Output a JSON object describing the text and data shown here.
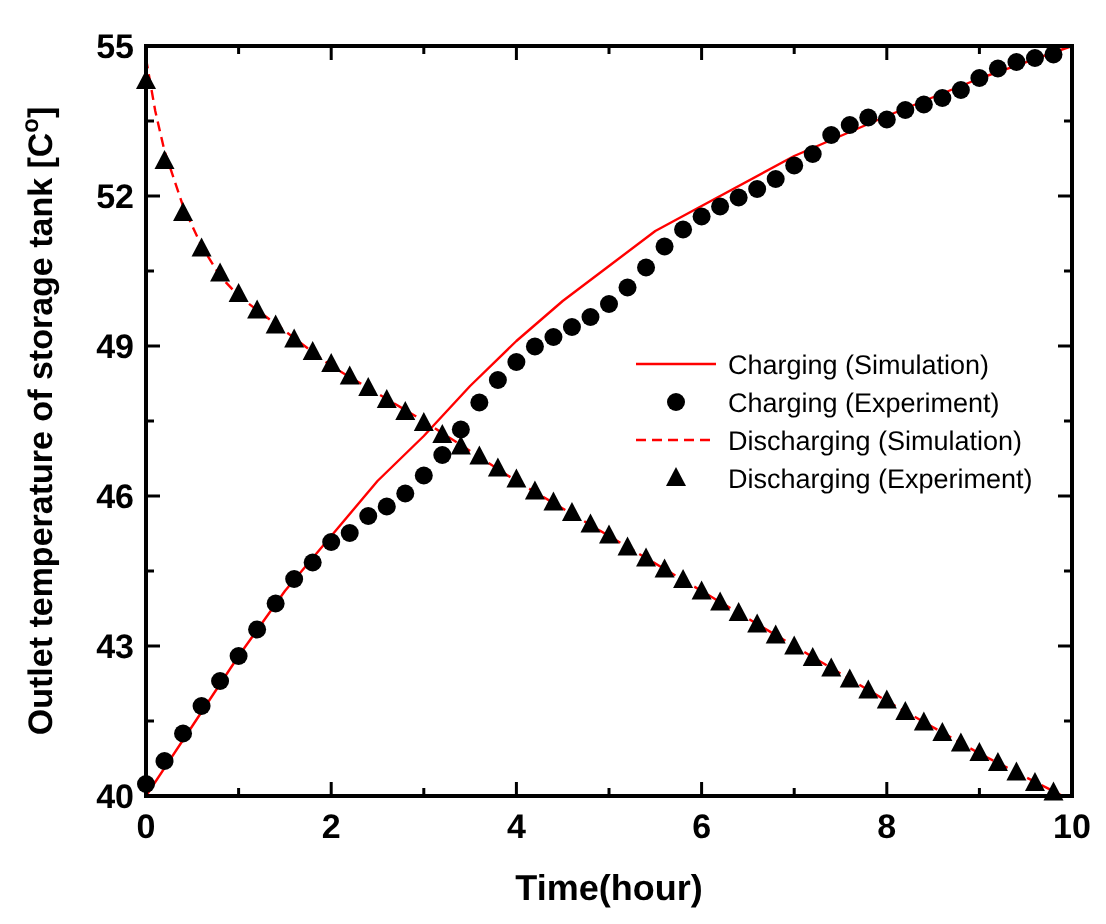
{
  "chart_data": {
    "type": "line",
    "xlabel": "Time(hour)",
    "ylabel": "Outlet temperature of storage tank [C$^{o}$]",
    "xlim": [
      0,
      10
    ],
    "xticks": [
      0,
      {
        "value": 1,
        "label": null
      },
      2,
      {
        "value": 3,
        "label": null
      },
      4,
      {
        "value": 5,
        "label": null
      },
      6,
      {
        "value": 7,
        "label": null
      },
      8,
      {
        "value": 9,
        "label": null
      },
      10
    ],
    "ylim": [
      40,
      55
    ],
    "yticks": [
      40,
      {
        "value": 41.5,
        "label": null
      },
      43,
      {
        "value": 44.5,
        "label": null
      },
      46,
      {
        "value": 47.5,
        "label": null
      },
      49,
      {
        "value": 50.5,
        "label": null
      },
      52,
      {
        "value": 53.5,
        "label": null
      },
      55
    ],
    "grid": false,
    "legend": "right",
    "series": [
      {
        "name": "Charging (Simulation)",
        "color": "#ff0000",
        "line_style": "solid",
        "marker": "none",
        "x": [
          0,
          0.5,
          1,
          1.5,
          2,
          2.5,
          3,
          3.5,
          4,
          4.5,
          5,
          5.5,
          6,
          7,
          8,
          9,
          10
        ],
        "values": [
          40.0,
          41.4,
          42.8,
          44.1,
          45.2,
          46.3,
          47.2,
          48.2,
          49.1,
          49.9,
          50.6,
          51.3,
          51.8,
          52.8,
          53.6,
          54.35,
          55.0
        ]
      },
      {
        "name": "Charging (Experiment)",
        "type": "scatter",
        "color": "#000000",
        "marker": "circle",
        "x": [
          0,
          0.2,
          0.4,
          0.6,
          0.8,
          1.0,
          1.2,
          1.4,
          1.6,
          1.8,
          2.0,
          2.2,
          2.4,
          2.6,
          2.8,
          3.0,
          3.2,
          3.4,
          3.6,
          3.8,
          4.0,
          4.2,
          4.4,
          4.6,
          4.8,
          5.0,
          5.2,
          5.4,
          5.6,
          5.8,
          6.0,
          6.2,
          6.4,
          6.6,
          6.8,
          7.0,
          7.2,
          7.4,
          7.6,
          7.8,
          8.0,
          8.2,
          8.4,
          8.6,
          8.8,
          9.0,
          9.2,
          9.4,
          9.6,
          9.8
        ],
        "values": [
          40.24,
          40.7,
          41.25,
          41.8,
          42.3,
          42.8,
          43.33,
          43.85,
          44.34,
          44.67,
          45.08,
          45.26,
          45.6,
          45.79,
          46.05,
          46.41,
          46.82,
          47.33,
          47.87,
          48.32,
          48.68,
          48.99,
          49.18,
          49.38,
          49.58,
          49.84,
          50.17,
          50.57,
          50.99,
          51.33,
          51.59,
          51.79,
          51.97,
          52.14,
          52.34,
          52.61,
          52.84,
          53.22,
          53.42,
          53.57,
          53.53,
          53.72,
          53.83,
          53.96,
          54.12,
          54.36,
          54.55,
          54.68,
          54.76,
          54.83
        ]
      },
      {
        "name": "Discharging (Simulation)",
        "color": "#ff0000",
        "line_style": "dashed",
        "marker": "none",
        "x": [
          0,
          0.1,
          0.2,
          0.4,
          0.6,
          0.8,
          1,
          1.5,
          2,
          3,
          4,
          5,
          6,
          7,
          8,
          9,
          9.9
        ],
        "values": [
          54.75,
          53.7,
          52.9,
          51.8,
          51.0,
          50.4,
          50.0,
          49.3,
          48.6,
          47.5,
          46.3,
          45.2,
          44.1,
          43.0,
          41.9,
          40.85,
          40.0
        ]
      },
      {
        "name": "Discharging (Experiment)",
        "type": "scatter",
        "color": "#000000",
        "marker": "triangle",
        "x": [
          0,
          0.2,
          0.4,
          0.6,
          0.8,
          1.0,
          1.2,
          1.4,
          1.6,
          1.8,
          2.0,
          2.2,
          2.4,
          2.6,
          2.8,
          3.0,
          3.2,
          3.4,
          3.6,
          3.8,
          4.0,
          4.2,
          4.4,
          4.6,
          4.8,
          5.0,
          5.2,
          5.4,
          5.6,
          5.8,
          6.0,
          6.2,
          6.4,
          6.6,
          6.8,
          7.0,
          7.2,
          7.4,
          7.6,
          7.8,
          8.0,
          8.2,
          8.4,
          8.6,
          8.8,
          9.0,
          9.2,
          9.4,
          9.6,
          9.8
        ],
        "values": [
          54.3,
          52.7,
          51.66,
          50.95,
          50.45,
          50.04,
          49.71,
          49.41,
          49.13,
          48.88,
          48.64,
          48.39,
          48.16,
          47.92,
          47.68,
          47.46,
          47.22,
          46.99,
          46.79,
          46.55,
          46.33,
          46.09,
          45.87,
          45.66,
          45.43,
          45.21,
          44.97,
          44.75,
          44.53,
          44.32,
          44.09,
          43.87,
          43.66,
          43.43,
          43.21,
          42.99,
          42.76,
          42.55,
          42.33,
          42.11,
          41.91,
          41.68,
          41.47,
          41.26,
          41.05,
          40.86,
          40.66,
          40.47,
          40.26,
          40.07
        ]
      }
    ]
  }
}
